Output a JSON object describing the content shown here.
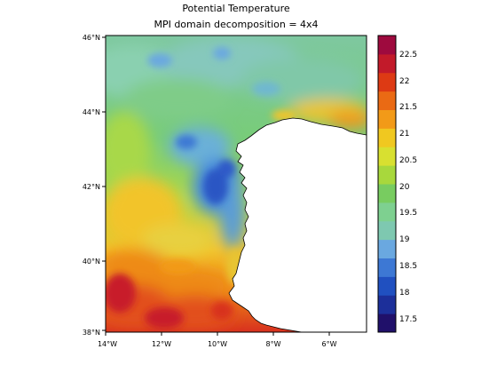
{
  "title": "Potential Temperature",
  "subtitle": "MPI domain decomposition = 4x4",
  "map": {
    "lat_ticks": [
      "46°N",
      "44°N",
      "42°N",
      "40°N",
      "38°N"
    ],
    "lon_ticks": [
      "14°W",
      "12°W",
      "10°W",
      "8°W",
      "6°W"
    ],
    "lat_range": [
      38,
      46
    ],
    "lon_range": [
      -14,
      -4.8
    ],
    "land_color": "#ffffff",
    "coast_color": "#000000"
  },
  "colorbar": {
    "labels": [
      "22.5",
      "22",
      "21.5",
      "21",
      "20.5",
      "20",
      "19.5",
      "19",
      "18.5",
      "18",
      "17.5"
    ],
    "min": 17.25,
    "max": 22.85,
    "colors": [
      "#20106a",
      "#1c2f9a",
      "#2050c0",
      "#3d78d4",
      "#6aa8e0",
      "#7ec8b0",
      "#7ed090",
      "#78cc60",
      "#a8d83c",
      "#d8e030",
      "#f0c820",
      "#f29a18",
      "#ea6a14",
      "#dd3a14",
      "#c21a2a",
      "#9e0a3e"
    ]
  },
  "field_colors": {
    "cold_deep": "#2a56c4",
    "cold": "#4a8cdc",
    "cool": "#6ab0d8",
    "mid": "#7ec8a0",
    "mild": "#78cc78",
    "warmish": "#b8d840",
    "warm": "#f2c42a",
    "hot": "#ee8a18",
    "hotter": "#e2501a",
    "hottest": "#c81c2c"
  }
}
